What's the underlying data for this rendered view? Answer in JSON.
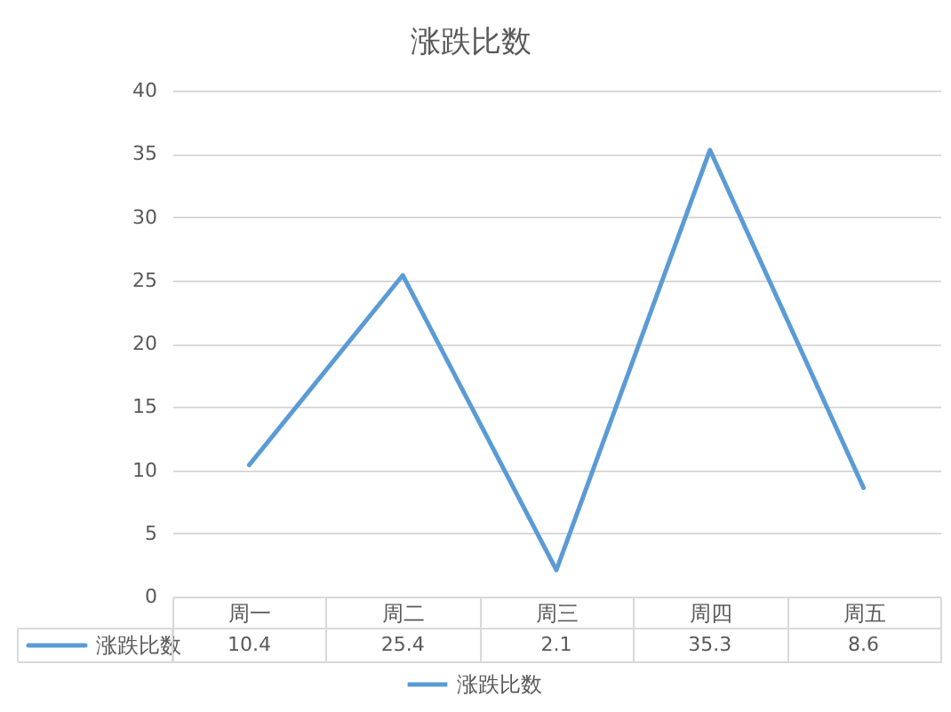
{
  "chart_data": {
    "type": "line",
    "title": "涨跌比数",
    "categories": [
      "周一",
      "周二",
      "周三",
      "周四",
      "周五"
    ],
    "series": [
      {
        "name": "涨跌比数",
        "color": "#5b9bd5",
        "values": [
          10.4,
          25.4,
          2.1,
          35.3,
          8.6
        ]
      }
    ],
    "ylim": [
      0,
      40
    ],
    "yticks": [
      0,
      5,
      10,
      15,
      20,
      25,
      30,
      35,
      40
    ],
    "grid": "y",
    "legend": "bottom",
    "data_labels": true
  }
}
